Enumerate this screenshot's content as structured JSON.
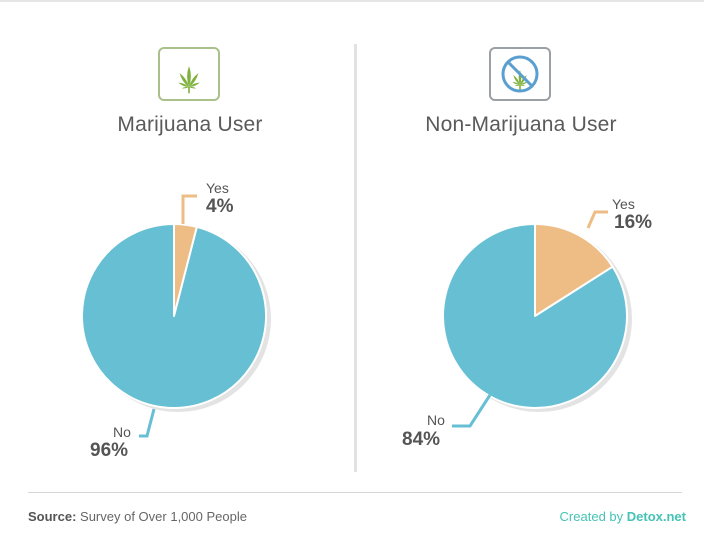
{
  "colors": {
    "no": "#67bfd4",
    "yes": "#edbd85",
    "shadow": "#e3e3e3",
    "credit": "#45c3b5",
    "leaf": "#7fb23c"
  },
  "icons": {
    "left": "cannabis-leaf-icon",
    "right": "no-cannabis-icon"
  },
  "chart_data": [
    {
      "type": "pie",
      "title": "Marijuana User",
      "categories": [
        "Yes",
        "No"
      ],
      "values": [
        4,
        96
      ],
      "labels": [
        "4%",
        "96%"
      ]
    },
    {
      "type": "pie",
      "title": "Non-Marijuana User",
      "categories": [
        "Yes",
        "No"
      ],
      "values": [
        16,
        84
      ],
      "labels": [
        "16%",
        "84%"
      ]
    }
  ],
  "footer": {
    "source_label": "Source:",
    "source_text": "Survey of Over 1,000 People",
    "credit_prefix": "Created by",
    "credit_brand": "Detox.net"
  }
}
